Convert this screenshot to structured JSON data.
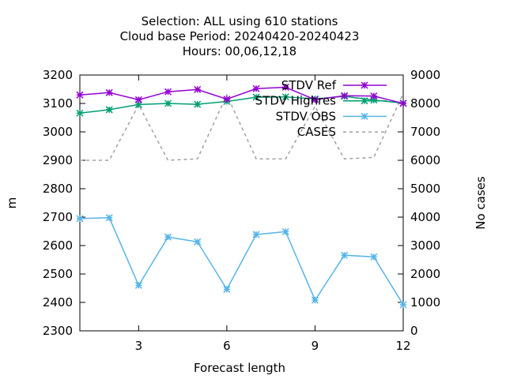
{
  "chart_data": {
    "type": "line",
    "title": [
      "Selection: ALL using   610 stations",
      "Cloud base   Period: 20240420-20240423",
      "Hours:  00,06,12,18"
    ],
    "xlabel": "Forecast length",
    "ylabel": "m",
    "y2label": "No cases",
    "xlim": [
      1,
      12
    ],
    "ylim": [
      2300,
      3200
    ],
    "y2lim": [
      0,
      9000
    ],
    "xticks": [
      3,
      6,
      9,
      12
    ],
    "yticks": [
      2300,
      2400,
      2500,
      2600,
      2700,
      2800,
      2900,
      3000,
      3100,
      3200
    ],
    "y2ticks": [
      0,
      1000,
      2000,
      3000,
      4000,
      5000,
      6000,
      7000,
      8000,
      9000
    ],
    "grid": false,
    "legend_position": "top-right",
    "x": [
      1,
      2,
      3,
      4,
      5,
      6,
      7,
      8,
      9,
      10,
      11,
      12
    ],
    "series": [
      {
        "name": "STDV Ref",
        "color": "#9400d3",
        "axis": "y",
        "marker": "star",
        "dash": "solid",
        "values": [
          3130,
          3138,
          3113,
          3141,
          3149,
          3115,
          3152,
          3157,
          3113,
          3127,
          3126,
          3100
        ]
      },
      {
        "name": "STDV Highres",
        "color": "#009e73",
        "axis": "y",
        "marker": "star",
        "dash": "solid",
        "values": [
          3066,
          3078,
          3096,
          3100,
          3097,
          3107,
          3122,
          3123,
          3116,
          3125,
          3112,
          3101
        ]
      },
      {
        "name": "STDV OBS",
        "color": "#56b4e9",
        "axis": "y",
        "marker": "star",
        "dash": "solid",
        "values": [
          2695,
          2698,
          2460,
          2630,
          2613,
          2446,
          2639,
          2649,
          2408,
          2566,
          2560,
          2392
        ]
      },
      {
        "name": "CASES",
        "color": "#a0a0a0",
        "axis": "y2",
        "marker": "none",
        "dash": "dashed",
        "values": [
          6000,
          6000,
          7950,
          6000,
          6050,
          8300,
          6050,
          6050,
          7900,
          6050,
          6100,
          8350
        ]
      }
    ]
  }
}
